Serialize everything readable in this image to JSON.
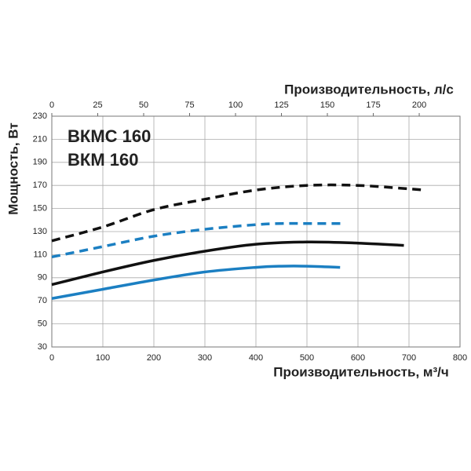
{
  "chart_data": {
    "type": "line",
    "xlabel": "Производительность, м³/ч",
    "x2label": "Производительность, л/с",
    "ylabel": "Мощность, Вт",
    "xlim": [
      0,
      800
    ],
    "xticks": [
      0,
      100,
      200,
      300,
      400,
      500,
      600,
      700,
      800
    ],
    "x2lim": [
      0,
      222.2
    ],
    "x2ticks": [
      0,
      25,
      50,
      75,
      100,
      125,
      150,
      175,
      200
    ],
    "ylim": [
      30,
      230
    ],
    "yticks": [
      30,
      50,
      70,
      90,
      110,
      130,
      150,
      170,
      190,
      210,
      230
    ],
    "grid": true,
    "series": [
      {
        "name": "ВКМС 160",
        "color": "#111111",
        "curves": [
          {
            "dashed": true,
            "x": [
              0,
              100,
              200,
              300,
              400,
              500,
              600,
              700,
              730
            ],
            "values": [
              122,
              134,
              149,
              158,
              166,
              170,
              170,
              167,
              166
            ]
          },
          {
            "dashed": false,
            "x": [
              0,
              100,
              200,
              300,
              400,
              500,
              600,
              690
            ],
            "values": [
              84,
              95,
              105,
              113,
              119,
              121,
              120,
              118
            ]
          }
        ]
      },
      {
        "name": "ВКМ 160",
        "color": "#1b7fc2",
        "curves": [
          {
            "dashed": true,
            "x": [
              0,
              100,
              200,
              300,
              400,
              450,
              500,
              570
            ],
            "values": [
              108,
              117,
              126,
              132,
              136,
              137,
              137,
              137
            ]
          },
          {
            "dashed": false,
            "x": [
              0,
              100,
              200,
              300,
              400,
              450,
              500,
              565
            ],
            "values": [
              72,
              80,
              88,
              95,
              99,
              100,
              100,
              99
            ]
          }
        ]
      }
    ]
  }
}
